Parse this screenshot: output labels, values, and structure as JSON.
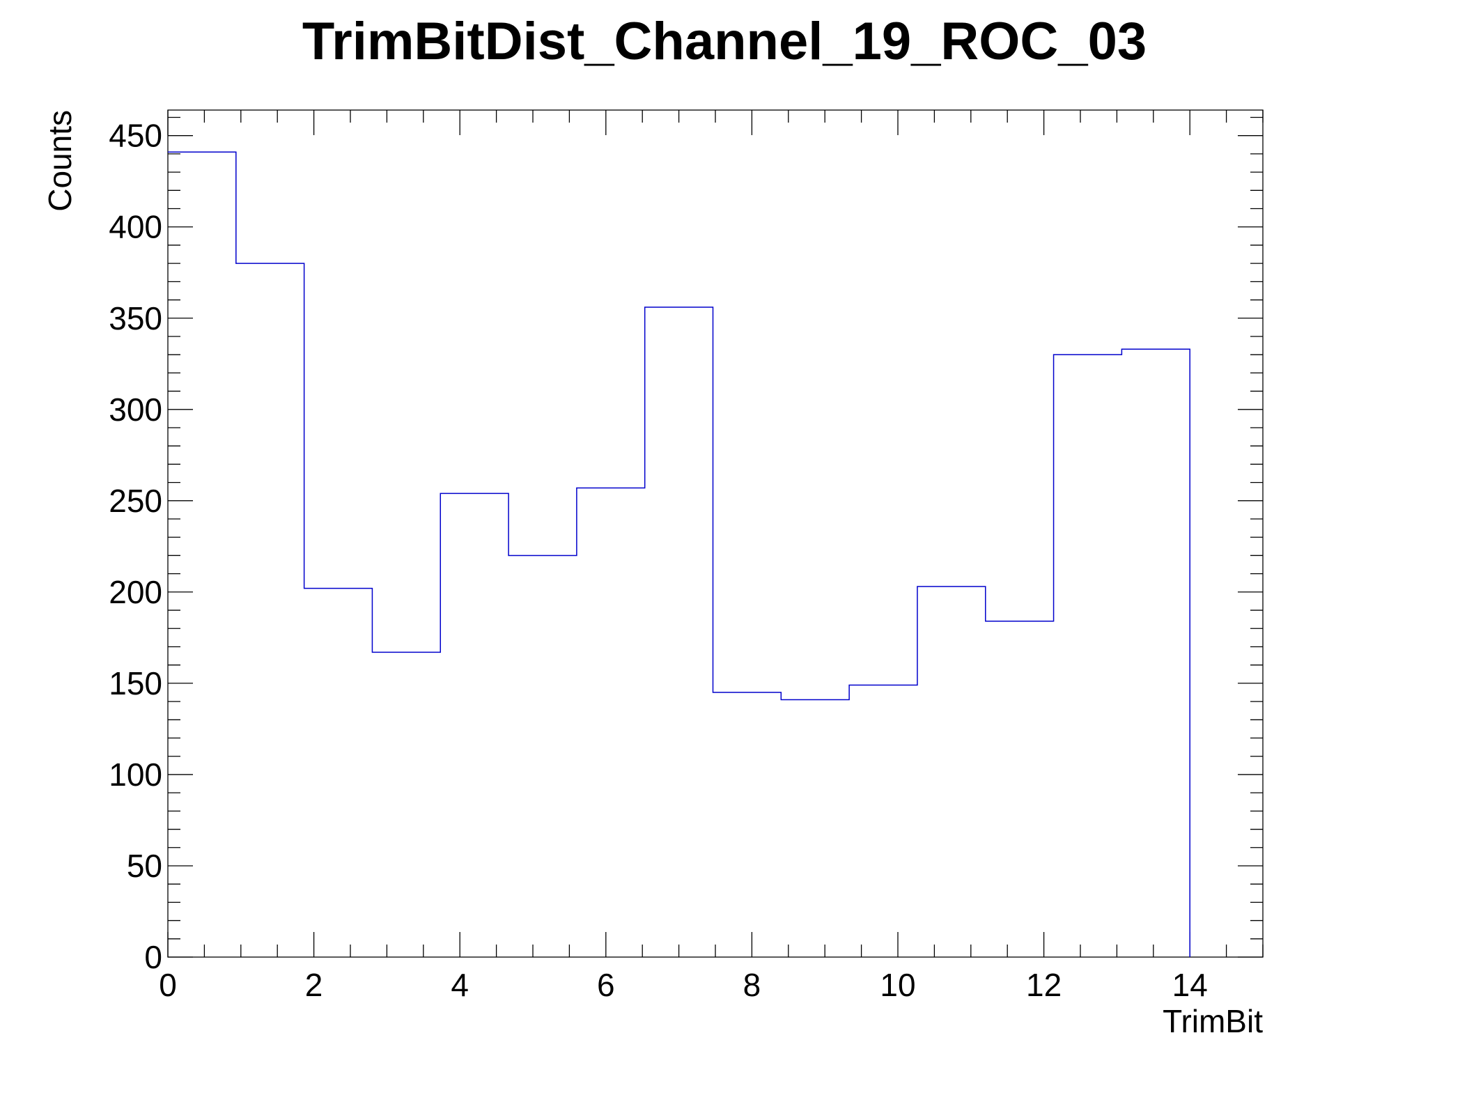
{
  "chart_data": {
    "type": "bar",
    "style": "step-histogram",
    "title": "TrimBitDist_Channel_19_ROC_03",
    "xlabel": "TrimBit",
    "ylabel": "Counts",
    "xlim": [
      0,
      15
    ],
    "ylim": [
      0,
      464
    ],
    "bin_edges": [
      0,
      0.9333,
      1.8667,
      2.8,
      3.7333,
      4.6667,
      5.6,
      6.5333,
      7.4667,
      8.4,
      9.3333,
      10.2667,
      11.2,
      12.1333,
      13.0667,
      14
    ],
    "values": [
      441,
      380,
      202,
      167,
      254,
      220,
      257,
      356,
      145,
      141,
      149,
      203,
      184,
      330,
      333
    ],
    "x_ticks": [
      "0",
      "2",
      "4",
      "6",
      "8",
      "10",
      "12",
      "14"
    ],
    "y_ticks": [
      "0",
      "50",
      "100",
      "150",
      "200",
      "250",
      "300",
      "350",
      "400",
      "450"
    ],
    "line_color": "#0000cc",
    "grid": false,
    "legend": "none"
  }
}
